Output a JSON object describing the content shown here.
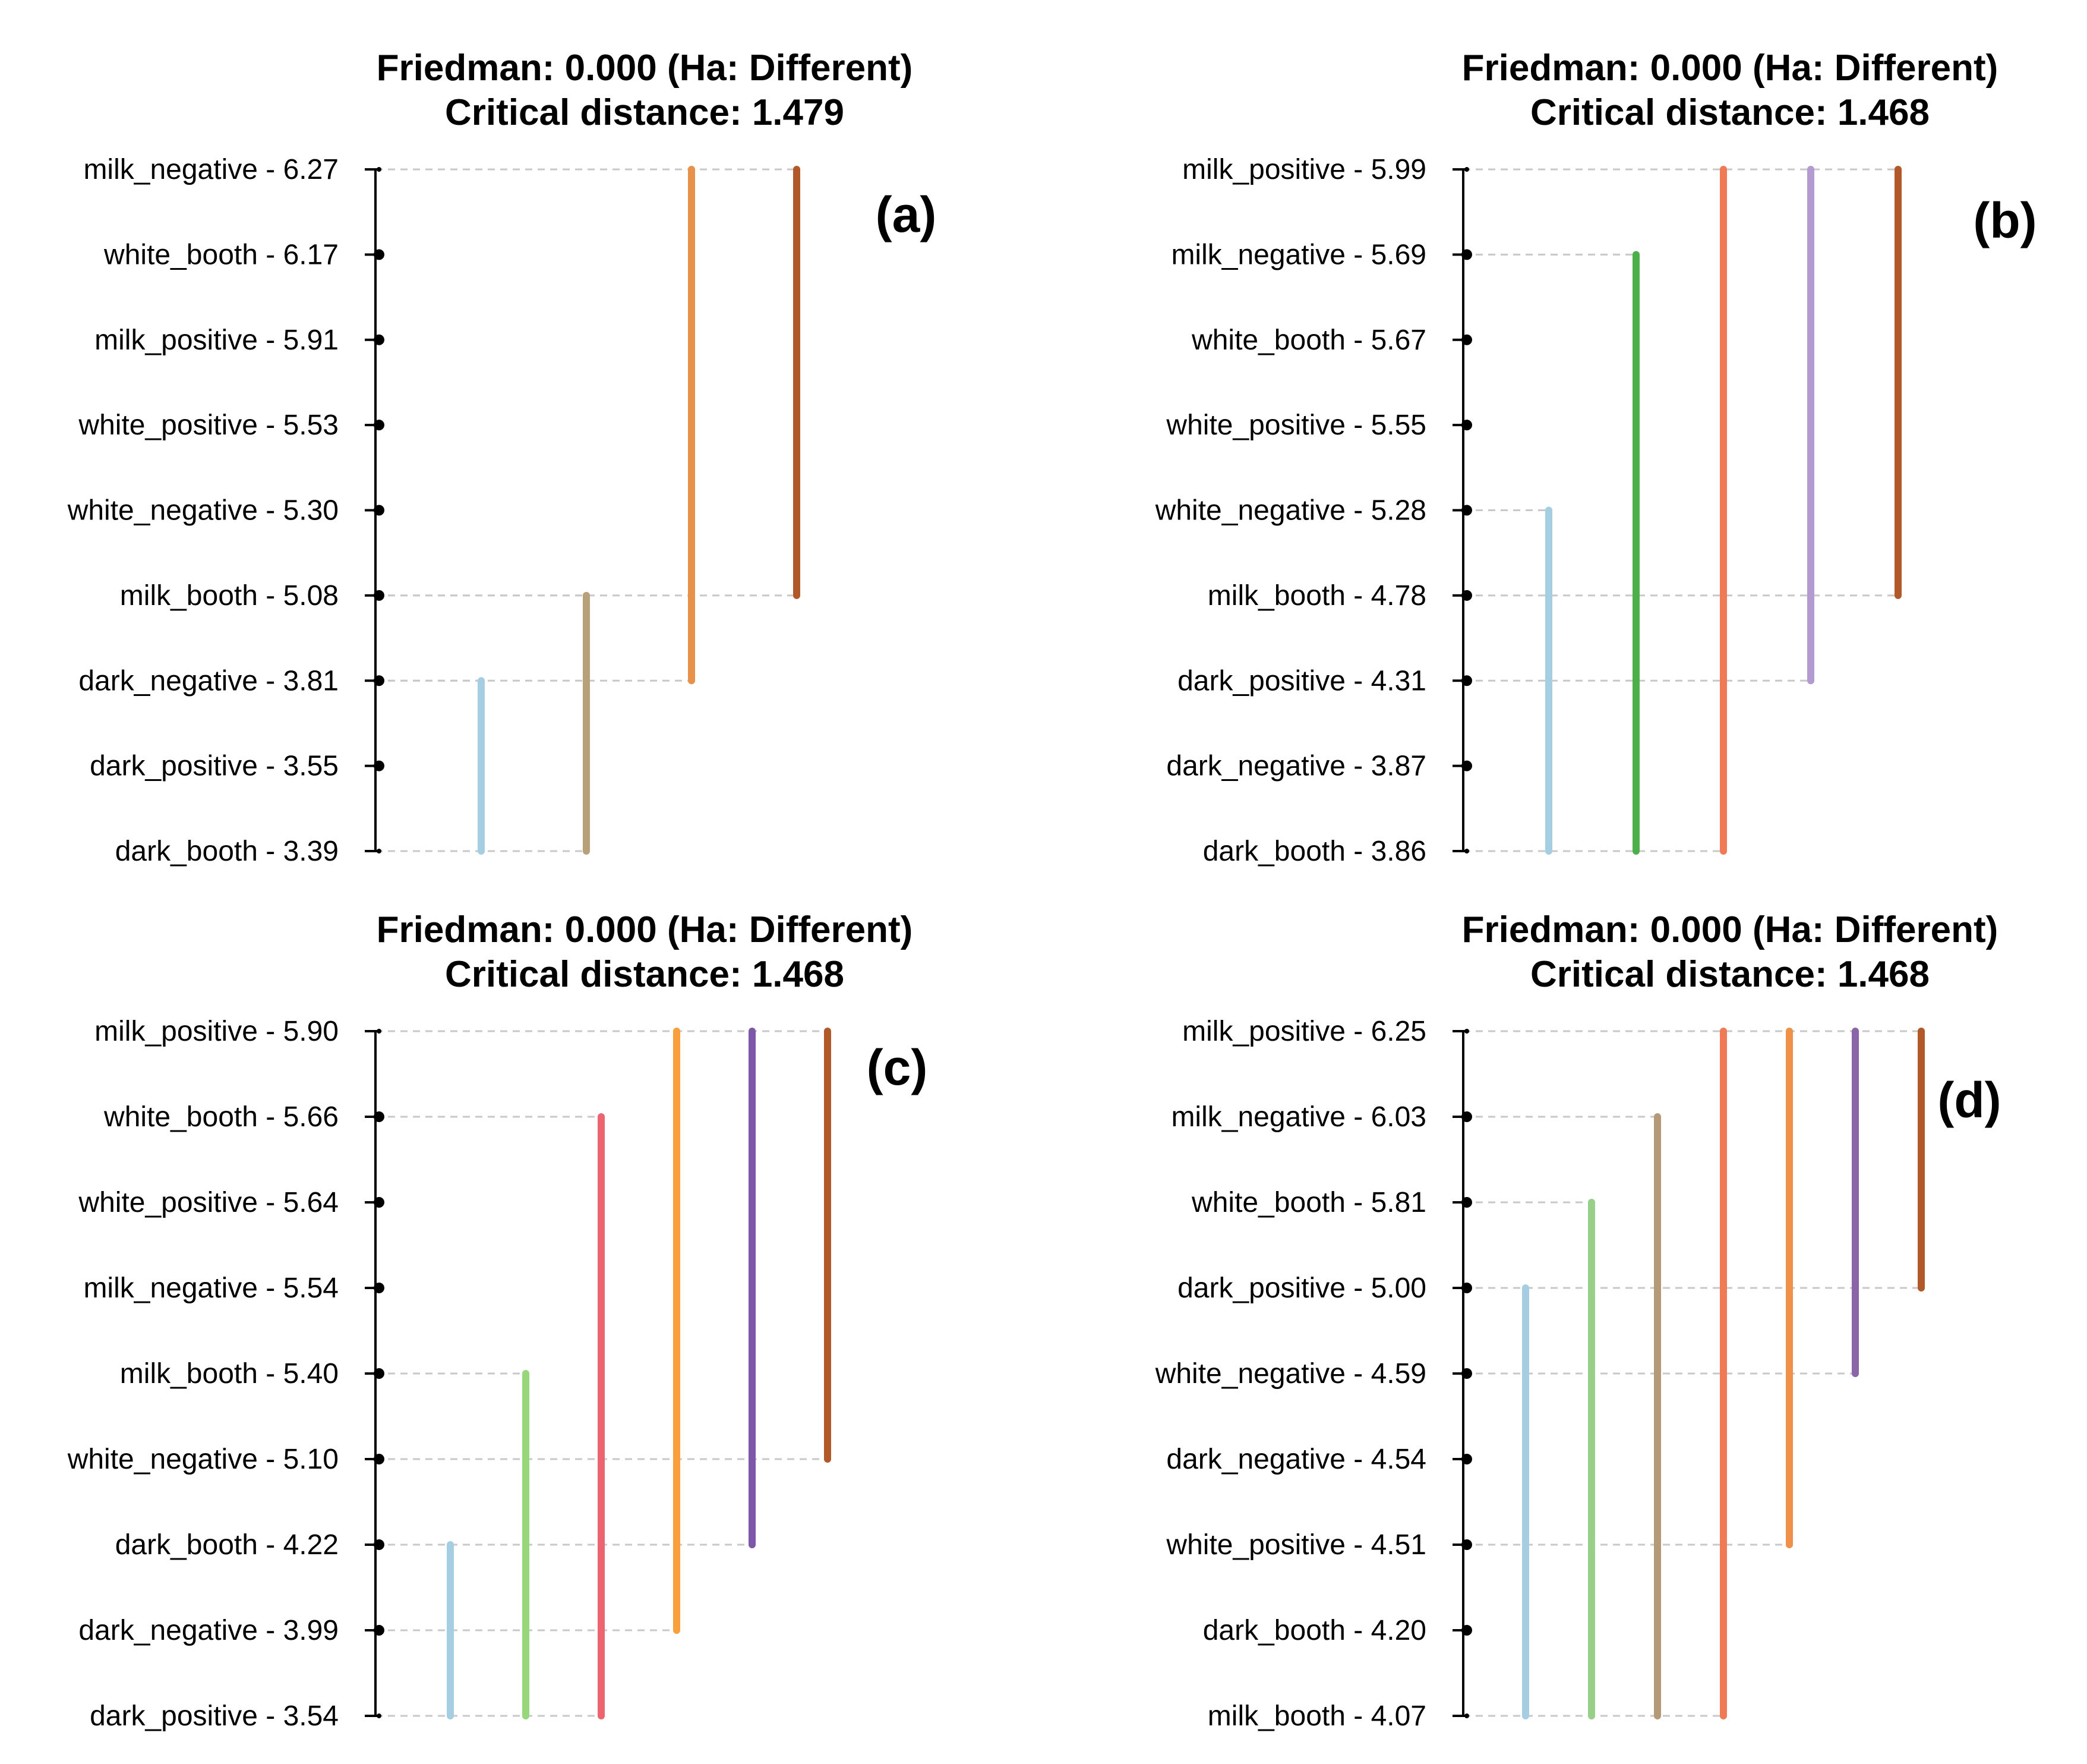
{
  "chart_data": [
    {
      "type": "critical-difference",
      "panel_label": "(a)",
      "title_line1": "Friedman: 0.000 (Ha: Different)",
      "title_line2": "Critical distance: 1.479",
      "entries": [
        {
          "name": "milk_negative",
          "rank": 6.27,
          "label": "milk_negative - 6.27"
        },
        {
          "name": "white_booth",
          "rank": 6.17,
          "label": "white_booth - 6.17"
        },
        {
          "name": "milk_positive",
          "rank": 5.91,
          "label": "milk_positive - 5.91"
        },
        {
          "name": "white_positive",
          "rank": 5.53,
          "label": "white_positive - 5.53"
        },
        {
          "name": "white_negative",
          "rank": 5.3,
          "label": "white_negative - 5.30"
        },
        {
          "name": "milk_booth",
          "rank": 5.08,
          "label": "milk_booth - 5.08"
        },
        {
          "name": "dark_negative",
          "rank": 3.81,
          "label": "dark_negative - 3.81"
        },
        {
          "name": "dark_positive",
          "rank": 3.55,
          "label": "dark_positive - 3.55"
        },
        {
          "name": "dark_booth",
          "rank": 3.39,
          "label": "dark_booth - 3.39"
        }
      ],
      "groups": [
        {
          "top": "dark_negative",
          "bottom": "dark_booth",
          "color": "#a6cee3"
        },
        {
          "top": "milk_booth",
          "bottom": "dark_booth",
          "color": "#b8a07a"
        },
        {
          "top": "milk_negative",
          "bottom": "dark_negative",
          "color": "#e8914a"
        },
        {
          "top": "milk_negative",
          "bottom": "milk_booth",
          "color": "#b15928"
        }
      ]
    },
    {
      "type": "critical-difference",
      "panel_label": "(b)",
      "title_line1": "Friedman: 0.000 (Ha: Different)",
      "title_line2": "Critical distance: 1.468",
      "entries": [
        {
          "name": "milk_positive",
          "rank": 5.99,
          "label": "milk_positive - 5.99"
        },
        {
          "name": "milk_negative",
          "rank": 5.69,
          "label": "milk_negative - 5.69"
        },
        {
          "name": "white_booth",
          "rank": 5.67,
          "label": "white_booth - 5.67"
        },
        {
          "name": "white_positive",
          "rank": 5.55,
          "label": "white_positive - 5.55"
        },
        {
          "name": "white_negative",
          "rank": 5.28,
          "label": "white_negative - 5.28"
        },
        {
          "name": "milk_booth",
          "rank": 4.78,
          "label": "milk_booth - 4.78"
        },
        {
          "name": "dark_positive",
          "rank": 4.31,
          "label": "dark_positive - 4.31"
        },
        {
          "name": "dark_negative",
          "rank": 3.87,
          "label": "dark_negative - 3.87"
        },
        {
          "name": "dark_booth",
          "rank": 3.86,
          "label": "dark_booth - 3.86"
        }
      ],
      "groups": [
        {
          "top": "white_negative",
          "bottom": "dark_booth",
          "color": "#a6cee3"
        },
        {
          "top": "milk_negative",
          "bottom": "dark_booth",
          "color": "#4daf4a"
        },
        {
          "top": "milk_positive",
          "bottom": "dark_booth",
          "color": "#ef7a55"
        },
        {
          "top": "milk_positive",
          "bottom": "dark_positive",
          "color": "#b39ad1"
        },
        {
          "top": "milk_positive",
          "bottom": "milk_booth",
          "color": "#b15928"
        }
      ]
    },
    {
      "type": "critical-difference",
      "panel_label": "(c)",
      "title_line1": "Friedman: 0.000 (Ha: Different)",
      "title_line2": "Critical distance: 1.468",
      "entries": [
        {
          "name": "milk_positive",
          "rank": 5.9,
          "label": "milk_positive - 5.90"
        },
        {
          "name": "white_booth",
          "rank": 5.66,
          "label": "white_booth - 5.66"
        },
        {
          "name": "white_positive",
          "rank": 5.64,
          "label": "white_positive - 5.64"
        },
        {
          "name": "milk_negative",
          "rank": 5.54,
          "label": "milk_negative - 5.54"
        },
        {
          "name": "milk_booth",
          "rank": 5.4,
          "label": "milk_booth - 5.40"
        },
        {
          "name": "white_negative",
          "rank": 5.1,
          "label": "white_negative - 5.10"
        },
        {
          "name": "dark_booth",
          "rank": 4.22,
          "label": "dark_booth - 4.22"
        },
        {
          "name": "dark_negative",
          "rank": 3.99,
          "label": "dark_negative - 3.99"
        },
        {
          "name": "dark_positive",
          "rank": 3.54,
          "label": "dark_positive - 3.54"
        }
      ],
      "groups": [
        {
          "top": "dark_booth",
          "bottom": "dark_positive",
          "color": "#a6cee3"
        },
        {
          "top": "milk_booth",
          "bottom": "dark_positive",
          "color": "#98d67a"
        },
        {
          "top": "white_booth",
          "bottom": "dark_positive",
          "color": "#ec6470"
        },
        {
          "top": "milk_positive",
          "bottom": "dark_negative",
          "color": "#f9a03c"
        },
        {
          "top": "milk_positive",
          "bottom": "dark_booth",
          "color": "#7e57a8"
        },
        {
          "top": "milk_positive",
          "bottom": "white_negative",
          "color": "#b15928"
        }
      ]
    },
    {
      "type": "critical-difference",
      "panel_label": "(d)",
      "title_line1": "Friedman: 0.000 (Ha: Different)",
      "title_line2": "Critical distance: 1.468",
      "entries": [
        {
          "name": "milk_positive",
          "rank": 6.25,
          "label": "milk_positive - 6.25"
        },
        {
          "name": "milk_negative",
          "rank": 6.03,
          "label": "milk_negative - 6.03"
        },
        {
          "name": "white_booth",
          "rank": 5.81,
          "label": "white_booth - 5.81"
        },
        {
          "name": "dark_positive",
          "rank": 5.0,
          "label": "dark_positive - 5.00"
        },
        {
          "name": "white_negative",
          "rank": 4.59,
          "label": "white_negative - 4.59"
        },
        {
          "name": "dark_negative",
          "rank": 4.54,
          "label": "dark_negative - 4.54"
        },
        {
          "name": "white_positive",
          "rank": 4.51,
          "label": "white_positive - 4.51"
        },
        {
          "name": "dark_booth",
          "rank": 4.2,
          "label": "dark_booth - 4.20"
        },
        {
          "name": "milk_booth",
          "rank": 4.07,
          "label": "milk_booth - 4.07"
        }
      ],
      "groups": [
        {
          "top": "dark_positive",
          "bottom": "milk_booth",
          "color": "#a6cee3"
        },
        {
          "top": "white_booth",
          "bottom": "milk_booth",
          "color": "#98d08a"
        },
        {
          "top": "milk_negative",
          "bottom": "milk_booth",
          "color": "#b59a78"
        },
        {
          "top": "milk_positive",
          "bottom": "milk_booth",
          "color": "#ef7a55"
        },
        {
          "top": "milk_positive",
          "bottom": "white_positive",
          "color": "#f0914a"
        },
        {
          "top": "milk_positive",
          "bottom": "white_negative",
          "color": "#8a65a8"
        },
        {
          "top": "milk_positive",
          "bottom": "dark_positive",
          "color": "#b15928"
        }
      ]
    }
  ]
}
